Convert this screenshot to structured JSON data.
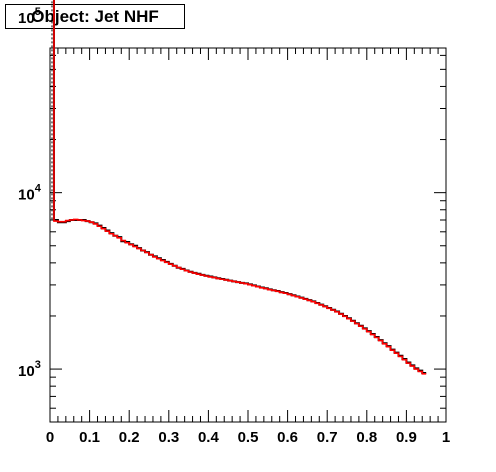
{
  "chart_data": {
    "type": "line",
    "title": "Object: Jet NHF",
    "xlabel": "",
    "ylabel": "",
    "xlim": [
      0,
      1
    ],
    "ylim_log10": [
      2.7,
      4.82
    ],
    "y_scale": "log",
    "grid": false,
    "legend": "none",
    "x_tick_labels": [
      "0",
      "0.1",
      "0.2",
      "0.3",
      "0.4",
      "0.5",
      "0.6",
      "0.7",
      "0.8",
      "0.9",
      "1"
    ],
    "y_tick_labels": [
      {
        "base": "10",
        "exp": "3",
        "value": 1000
      },
      {
        "base": "10",
        "exp": "4",
        "value": 10000
      },
      {
        "base": "10",
        "exp": "5",
        "value": 100000
      }
    ],
    "bin_width": 0.01,
    "series": [
      {
        "color": "#000000",
        "values": [
          290000,
          7000,
          6800,
          6800,
          6900,
          7000,
          7000,
          7000,
          7000,
          6900,
          6800,
          6700,
          6500,
          6300,
          6100,
          5900,
          5700,
          5600,
          5300,
          5250,
          5100,
          5000,
          4850,
          4700,
          4600,
          4450,
          4350,
          4250,
          4150,
          4050,
          3950,
          3850,
          3750,
          3700,
          3620,
          3560,
          3510,
          3470,
          3420,
          3380,
          3350,
          3310,
          3270,
          3240,
          3210,
          3170,
          3140,
          3110,
          3080,
          3060,
          3020,
          2980,
          2940,
          2900,
          2870,
          2830,
          2800,
          2770,
          2730,
          2700,
          2660,
          2620,
          2580,
          2540,
          2500,
          2460,
          2420,
          2370,
          2320,
          2270,
          2220,
          2170,
          2120,
          2060,
          2000,
          1940,
          1880,
          1820,
          1760,
          1700,
          1640,
          1580,
          1520,
          1460,
          1400,
          1350,
          1290,
          1240,
          1190,
          1140,
          1090,
          1050,
          1010,
          980,
          950
        ]
      },
      {
        "color": "#ff0000",
        "values": [
          280000,
          6900,
          6850,
          6850,
          6950,
          7000,
          7050,
          7000,
          6950,
          6900,
          6800,
          6650,
          6450,
          6250,
          6050,
          5850,
          5700,
          5550,
          5350,
          5200,
          5080,
          4950,
          4820,
          4700,
          4580,
          4450,
          4320,
          4220,
          4120,
          4030,
          3930,
          3850,
          3760,
          3680,
          3610,
          3550,
          3500,
          3450,
          3410,
          3370,
          3330,
          3300,
          3260,
          3230,
          3200,
          3170,
          3140,
          3110,
          3080,
          3050,
          3010,
          2970,
          2930,
          2890,
          2860,
          2820,
          2790,
          2760,
          2720,
          2690,
          2650,
          2610,
          2570,
          2530,
          2490,
          2450,
          2410,
          2360,
          2310,
          2260,
          2210,
          2160,
          2110,
          2050,
          1990,
          1930,
          1870,
          1810,
          1750,
          1690,
          1630,
          1570,
          1510,
          1450,
          1390,
          1340,
          1280,
          1230,
          1180,
          1130,
          1080,
          1040,
          1000,
          970,
          940
        ]
      }
    ]
  }
}
